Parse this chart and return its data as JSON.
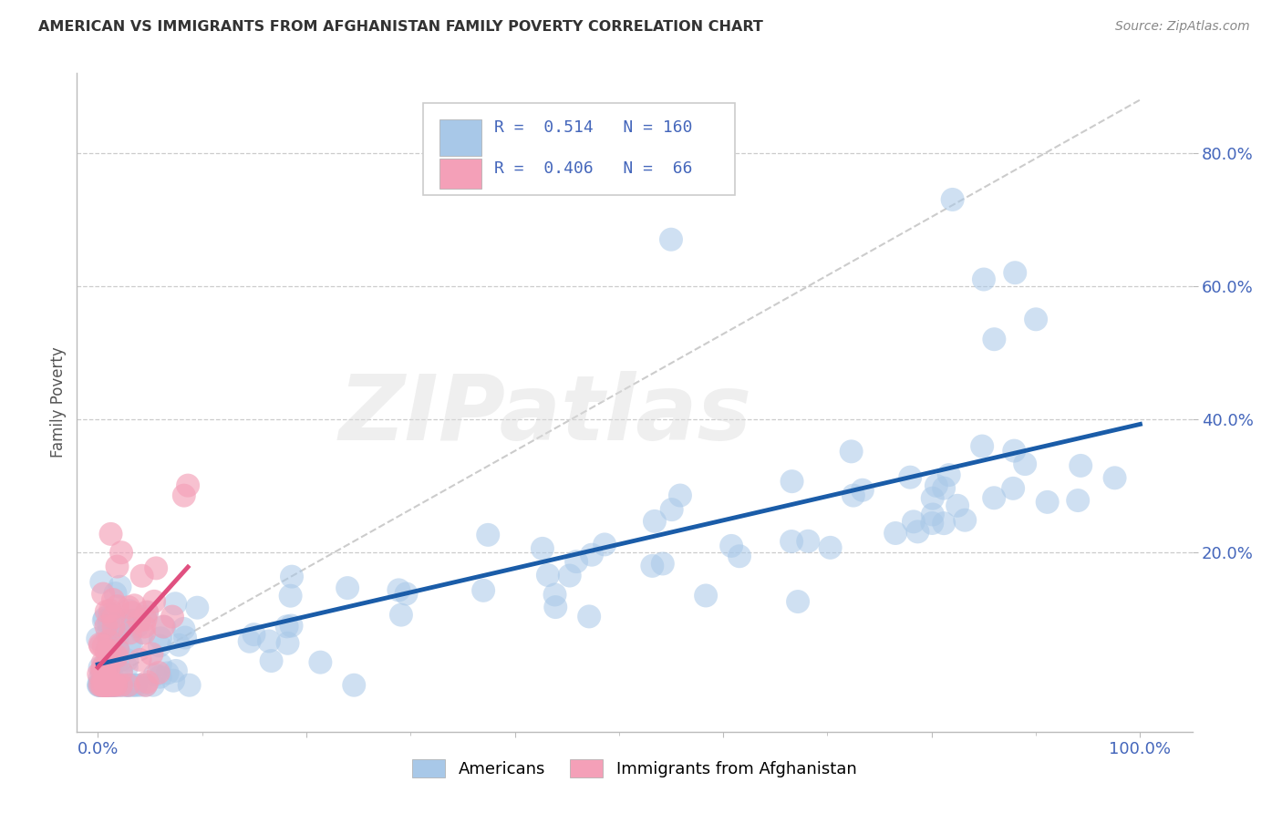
{
  "title": "AMERICAN VS IMMIGRANTS FROM AFGHANISTAN FAMILY POVERTY CORRELATION CHART",
  "source": "Source: ZipAtlas.com",
  "ylabel_label": "Family Poverty",
  "x_tick_positions": [
    0.0,
    0.2,
    0.4,
    0.6,
    0.8,
    1.0
  ],
  "x_tick_labels": [
    "0.0%",
    "",
    "",
    "",
    "",
    "100.0%"
  ],
  "y_tick_positions": [
    0.2,
    0.4,
    0.6,
    0.8
  ],
  "y_tick_labels": [
    "20.0%",
    "40.0%",
    "60.0%",
    "80.0%"
  ],
  "xlim": [
    -0.02,
    1.05
  ],
  "ylim": [
    -0.07,
    0.92
  ],
  "americans_R": "0.514",
  "americans_N": "160",
  "afghan_R": "0.406",
  "afghan_N": "66",
  "legend_blue_label": "Americans",
  "legend_pink_label": "Immigrants from Afghanistan",
  "blue_scatter_color": "#A8C8E8",
  "pink_scatter_color": "#F4A0B8",
  "blue_line_color": "#1A5CA8",
  "pink_line_color": "#E05080",
  "diag_line_color": "#CCCCCC",
  "watermark": "ZIPatlas",
  "background_color": "#FFFFFF",
  "grid_color": "#CCCCCC",
  "tick_color": "#4466BB",
  "ylabel_color": "#555555"
}
